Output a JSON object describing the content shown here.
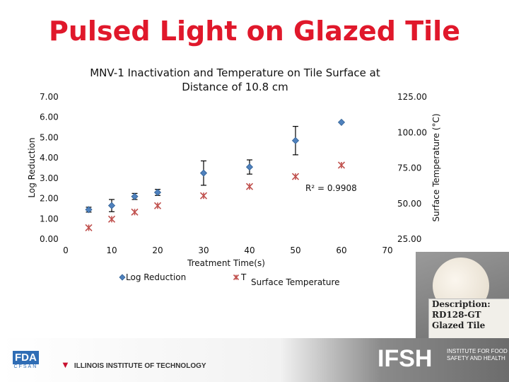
{
  "slide": {
    "title": "Pulsed Light on Glazed Tile"
  },
  "chart_data": {
    "type": "scatter",
    "title": "MNV-1 Inactivation and Temperature on Tile Surface at Distance of 10.8 cm",
    "xlabel": "Treatment Time(s)",
    "ylabel": "Log Reduction",
    "y2label": "Surface Temperature (°C)",
    "xlim": [
      0,
      70
    ],
    "ylim": [
      0,
      7
    ],
    "y2lim": [
      25,
      125
    ],
    "x_ticks": [
      "0",
      "10",
      "20",
      "30",
      "40",
      "50",
      "60",
      "70"
    ],
    "y_ticks": [
      "0.00",
      "1.00",
      "2.00",
      "3.00",
      "4.00",
      "5.00",
      "6.00",
      "7.00"
    ],
    "y2_ticks": [
      "25.00",
      "50.00",
      "75.00",
      "100.00",
      "125.00"
    ],
    "grid": false,
    "legend_position": "bottom",
    "series": [
      {
        "name": "Log Reduction",
        "axis": "left",
        "marker": "diamond",
        "color": "#4f81bd",
        "points": [
          {
            "x": 5,
            "y": 1.45,
            "err": 0.12
          },
          {
            "x": 10,
            "y": 1.65,
            "err": 0.3
          },
          {
            "x": 15,
            "y": 2.1,
            "err": 0.15
          },
          {
            "x": 20,
            "y": 2.3,
            "err": 0.15
          },
          {
            "x": 30,
            "y": 3.25,
            "err": 0.6
          },
          {
            "x": 40,
            "y": 3.55,
            "err": 0.35
          },
          {
            "x": 50,
            "y": 4.85,
            "err": 0.7
          },
          {
            "x": 60,
            "y": 5.75,
            "err": 0
          }
        ]
      },
      {
        "name": "T",
        "axis": "right",
        "marker": "star",
        "color": "#c0504d",
        "points": [
          {
            "x": 5,
            "y": 33
          },
          {
            "x": 10,
            "y": 39
          },
          {
            "x": 15,
            "y": 44
          },
          {
            "x": 20,
            "y": 48.5
          },
          {
            "x": 30,
            "y": 55.5
          },
          {
            "x": 40,
            "y": 62
          },
          {
            "x": 50,
            "y": 69
          },
          {
            "x": 60,
            "y": 77
          }
        ]
      }
    ],
    "annotations": [
      "R² = 0.9908"
    ],
    "legend": {
      "log_reduction": "Log Reduction",
      "t": "T",
      "surface_temperature": "Surface Temperature"
    }
  },
  "sample": {
    "lines": [
      "Description:",
      "RD128-GT",
      "Glazed Tile"
    ]
  },
  "logos": {
    "fda": "FDA",
    "fda_sub": "CFSAN",
    "iit": "ILLINOIS INSTITUTE OF TECHNOLOGY",
    "ifsh": "IFSH",
    "ifsh_sub": "INSTITUTE FOR FOOD SAFETY AND HEALTH"
  }
}
